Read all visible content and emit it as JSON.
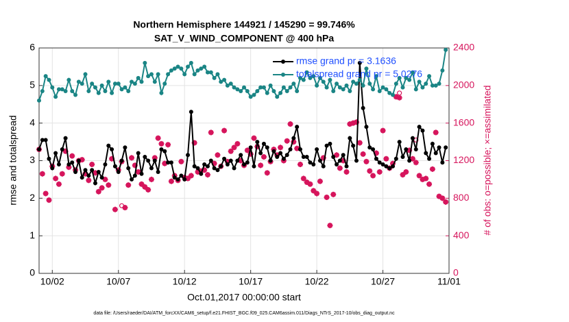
{
  "chart_data": {
    "type": "line",
    "title": "Northern Hemisphere 144921 / 145290 = 99.746%",
    "subtitle": "SAT_V_WIND_COMPONENT @ 400 hPa",
    "x_label": "Oct.01,2017 00:00:00 start",
    "y_label": "rmse and totalspread",
    "y2_label": "# of obs: o=possible; ×=assimilated",
    "footnote": "data file: /Users/raeder/DAI/ATM_forcXX/CAM6_setup/f.e21.FHIST_BGC.f09_025.CAM6assim.011/Diags_NTrS_2017-10/obs_diag_output.nc",
    "grid": true,
    "legend": "upper right",
    "xlim": [
      0,
      31
    ],
    "xticks": [
      {
        "value": 1,
        "label": "10/02"
      },
      {
        "value": 6,
        "label": "10/07"
      },
      {
        "value": 11,
        "label": "10/12"
      },
      {
        "value": 16,
        "label": "10/17"
      },
      {
        "value": 21,
        "label": "10/22"
      },
      {
        "value": 26,
        "label": "10/27"
      },
      {
        "value": 31,
        "label": "11/01"
      }
    ],
    "ylim": [
      0,
      6
    ],
    "yticks": [
      0,
      1,
      2,
      3,
      4,
      5,
      6
    ],
    "y2lim": [
      0,
      2400
    ],
    "y2ticks": [
      0,
      400,
      800,
      1200,
      1600,
      2000,
      2400
    ],
    "y2color": "#d6155c",
    "x": [
      0,
      0.25,
      0.5,
      0.75,
      1,
      1.25,
      1.5,
      1.75,
      2,
      2.25,
      2.5,
      2.75,
      3,
      3.25,
      3.5,
      3.75,
      4,
      4.25,
      4.5,
      4.75,
      5,
      5.25,
      5.5,
      5.75,
      6,
      6.25,
      6.5,
      6.75,
      7,
      7.25,
      7.5,
      7.75,
      8,
      8.25,
      8.5,
      8.75,
      9,
      9.25,
      9.5,
      9.75,
      10,
      10.25,
      10.5,
      10.75,
      11,
      11.25,
      11.5,
      11.75,
      12,
      12.25,
      12.5,
      12.75,
      13,
      13.25,
      13.5,
      13.75,
      14,
      14.25,
      14.5,
      14.75,
      15,
      15.25,
      15.5,
      15.75,
      16,
      16.25,
      16.5,
      16.75,
      17,
      17.25,
      17.5,
      17.75,
      18,
      18.25,
      18.5,
      18.75,
      19,
      19.25,
      19.5,
      19.75,
      20,
      20.25,
      20.5,
      20.75,
      21,
      21.25,
      21.5,
      21.75,
      22,
      22.25,
      22.5,
      22.75,
      23,
      23.25,
      23.5,
      23.75,
      24,
      24.25,
      24.5,
      24.75,
      25,
      25.25,
      25.5,
      25.75,
      26,
      26.25,
      26.5,
      26.75,
      27,
      27.25,
      27.5,
      27.75,
      28,
      28.25,
      28.5,
      28.75,
      29,
      29.25,
      29.5,
      29.75,
      30,
      30.25,
      30.5,
      30.75
    ],
    "series": [
      {
        "name": "rmse grand pr = 3.1636",
        "color": "#000000",
        "marker": "dot",
        "axis": "y",
        "values": [
          3.3,
          3.55,
          3.55,
          3.05,
          2.8,
          3.2,
          2.9,
          3.3,
          3.6,
          2.9,
          2.95,
          2.7,
          3.0,
          2.55,
          2.75,
          2.6,
          2.75,
          2.4,
          2.7,
          2.55,
          2.9,
          3.4,
          3.3,
          2.85,
          2.7,
          3.0,
          3.35,
          2.8,
          2.5,
          2.6,
          3.2,
          2.65,
          3.1,
          3.0,
          2.8,
          3.0,
          2.7,
          3.3,
          3.25,
          2.95,
          2.95,
          2.55,
          2.5,
          2.6,
          2.5,
          3.15,
          4.3,
          2.85,
          2.8,
          2.65,
          2.9,
          2.85,
          3.0,
          2.8,
          2.75,
          2.85,
          3.05,
          2.9,
          3.0,
          2.8,
          3.0,
          3.15,
          2.9,
          2.95,
          3.35,
          2.85,
          3.5,
          3.2,
          3.45,
          3.35,
          3.0,
          3.25,
          3.1,
          3.2,
          3.05,
          3.15,
          3.3,
          3.6,
          3.9,
          3.3,
          3.1,
          3.1,
          2.95,
          2.9,
          3.3,
          3.0,
          2.85,
          3.4,
          3.45,
          3.1,
          2.9,
          3.0,
          3.15,
          2.85,
          3.6,
          3.4,
          3.0,
          5.6,
          4.4,
          3.9,
          3.35,
          3.3,
          3.05,
          2.95,
          2.9,
          2.85,
          2.8,
          2.85,
          3.05,
          3.5,
          3.1,
          3.3,
          3.0,
          3.6,
          3.3,
          3.9,
          3.8,
          3.2,
          3.05,
          3.45,
          3.2,
          3.35,
          2.95,
          3.35
        ]
      },
      {
        "name": "totalspread grand pr = 5.0276",
        "color": "#1a8585",
        "marker": "dot",
        "axis": "y",
        "values": [
          4.6,
          4.85,
          5.25,
          5.15,
          4.95,
          4.7,
          4.9,
          4.9,
          4.85,
          5.15,
          4.85,
          4.75,
          5.1,
          5.05,
          5.3,
          4.85,
          5.05,
          4.95,
          4.8,
          5.0,
          4.85,
          5.1,
          4.8,
          5.05,
          5.05,
          4.9,
          4.95,
          4.85,
          5.1,
          5.05,
          5.2,
          5.1,
          5.6,
          5.25,
          5.3,
          5.1,
          5.3,
          4.8,
          5.05,
          5.3,
          5.4,
          5.45,
          5.5,
          5.45,
          5.3,
          5.5,
          5.6,
          5.3,
          5.4,
          5.45,
          5.5,
          5.35,
          5.35,
          5.2,
          5.3,
          5.1,
          5.15,
          5.0,
          5.05,
          4.95,
          4.9,
          4.85,
          4.95,
          4.85,
          4.7,
          4.75,
          4.85,
          4.95,
          4.95,
          4.8,
          5.0,
          4.85,
          4.7,
          4.8,
          4.95,
          4.85,
          4.95,
          5.05,
          4.85,
          5.2,
          5.15,
          5.35,
          5.2,
          5.25,
          5.0,
          5.2,
          5.1,
          4.95,
          5.15,
          4.85,
          5.05,
          4.95,
          4.9,
          5.0,
          4.85,
          5.1,
          5.05,
          5.15,
          5.0,
          5.45,
          5.05,
          4.9,
          5.25,
          4.85,
          4.95,
          4.9,
          4.8,
          4.75,
          5.05,
          5.2,
          4.95,
          5.2,
          5.15,
          5.35,
          4.9,
          5.1,
          4.95,
          5.05,
          5.25,
          5.0,
          5.0,
          5.05,
          5.4,
          5.95
        ]
      },
      {
        "color": "#d6155c",
        "marker": "circle",
        "axis": "y2",
        "values": [
          1320,
          1060,
          850,
          780,
          1140,
          1010,
          950,
          1060,
          1300,
          1130,
          1250,
          1100,
          1200,
          1210,
          1060,
          990,
          1160,
          1070,
          870,
          910,
          1000,
          940,
          1220,
          680,
          1100,
          720,
          700,
          940,
          1230,
          1150,
          1080,
          950,
          920,
          890,
          1000,
          1230,
          1440,
          1380,
          1170,
          1370,
          980,
          1040,
          990,
          1190,
          1020,
          1010,
          1040,
          1390,
          1080,
          1090,
          1100,
          1050,
          1500,
          1170,
          1260,
          1140,
          1520,
          1190,
          1300,
          1340,
          1380,
          1200,
          1150,
          1310,
          1270,
          1440,
          1350,
          1150,
          1240,
          1070,
          1190,
          1320,
          1260,
          1340,
          1200,
          1410,
          1590,
          1400,
          1330,
          1160,
          1010,
          970,
          950,
          880,
          850,
          980,
          1230,
          810,
          510,
          840,
          1260,
          1120,
          1200,
          1080,
          1590,
          1600,
          1610,
          1390,
          1270,
          1190,
          1090,
          1040,
          1280,
          1080,
          1520,
          1220,
          1120,
          1170,
          1880,
          1920,
          1050,
          1080,
          1310,
          1220,
          1420,
          1040,
          1000,
          1010,
          950,
          1110,
          1500,
          820,
          800,
          760
        ]
      },
      {
        "color": "#d6155c",
        "marker": "asterisk",
        "axis": "y2",
        "values": [
          1320,
          1060,
          850,
          780,
          1140,
          1010,
          950,
          1060,
          1300,
          1130,
          1250,
          1100,
          1200,
          1210,
          1060,
          990,
          1160,
          1070,
          870,
          910,
          1000,
          940,
          1220,
          680,
          1100,
          1190,
          700,
          940,
          1230,
          1150,
          1080,
          950,
          920,
          890,
          1000,
          1230,
          1440,
          1380,
          1170,
          1370,
          980,
          1040,
          990,
          1190,
          1020,
          1010,
          1040,
          1390,
          1080,
          1090,
          1100,
          1050,
          1500,
          1170,
          1260,
          1140,
          1520,
          1190,
          1300,
          1340,
          1380,
          1200,
          1150,
          1310,
          1270,
          1440,
          1350,
          1150,
          1240,
          1070,
          1190,
          1320,
          1260,
          1340,
          1200,
          1410,
          1590,
          1400,
          1330,
          1160,
          1010,
          970,
          950,
          880,
          850,
          980,
          1230,
          810,
          510,
          840,
          1260,
          1120,
          1200,
          1080,
          1590,
          1600,
          1610,
          1390,
          1270,
          1190,
          1090,
          1040,
          1280,
          1080,
          1520,
          1220,
          1120,
          1170,
          1880,
          1870,
          1050,
          1080,
          1310,
          1220,
          1180,
          1040,
          1000,
          1010,
          950,
          1110,
          1500,
          820,
          800,
          760
        ]
      }
    ]
  }
}
